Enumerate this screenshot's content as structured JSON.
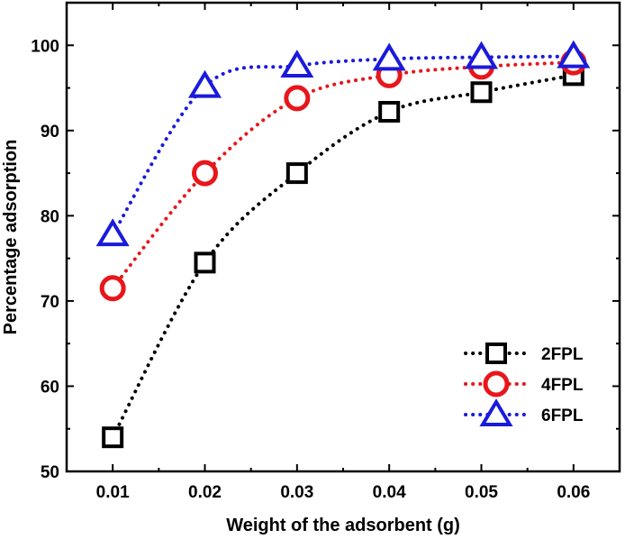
{
  "chart_data": {
    "type": "line",
    "title": "",
    "xlabel": "Weight of the adsorbent (g)",
    "ylabel": "Percentage adsorption",
    "x": [
      0.01,
      0.02,
      0.03,
      0.04,
      0.05,
      0.06
    ],
    "x_tick_labels": [
      "0.01",
      "0.02",
      "0.03",
      "0.04",
      "0.05",
      "0.06"
    ],
    "xlim": [
      0.005,
      0.065
    ],
    "ylim": [
      50,
      105
    ],
    "y_ticks": [
      50,
      60,
      70,
      80,
      90,
      100
    ],
    "y_tick_labels": [
      "50",
      "60",
      "70",
      "80",
      "90",
      "100"
    ],
    "grid": false,
    "legend_position": "bottom-right",
    "series": [
      {
        "name": "2FPL",
        "color": "#000000",
        "marker": "square",
        "line_style": "dotted",
        "values": [
          54.0,
          74.5,
          85.0,
          92.2,
          94.5,
          96.5
        ]
      },
      {
        "name": "4FPL",
        "color": "#e8161b",
        "marker": "circle",
        "line_style": "dotted",
        "values": [
          71.5,
          85.0,
          93.8,
          96.5,
          97.5,
          98.0
        ]
      },
      {
        "name": "6FPL",
        "color": "#1a1adc",
        "marker": "triangle",
        "line_style": "dotted",
        "values": [
          77.8,
          95.2,
          97.6,
          98.4,
          98.6,
          98.7
        ]
      }
    ]
  }
}
